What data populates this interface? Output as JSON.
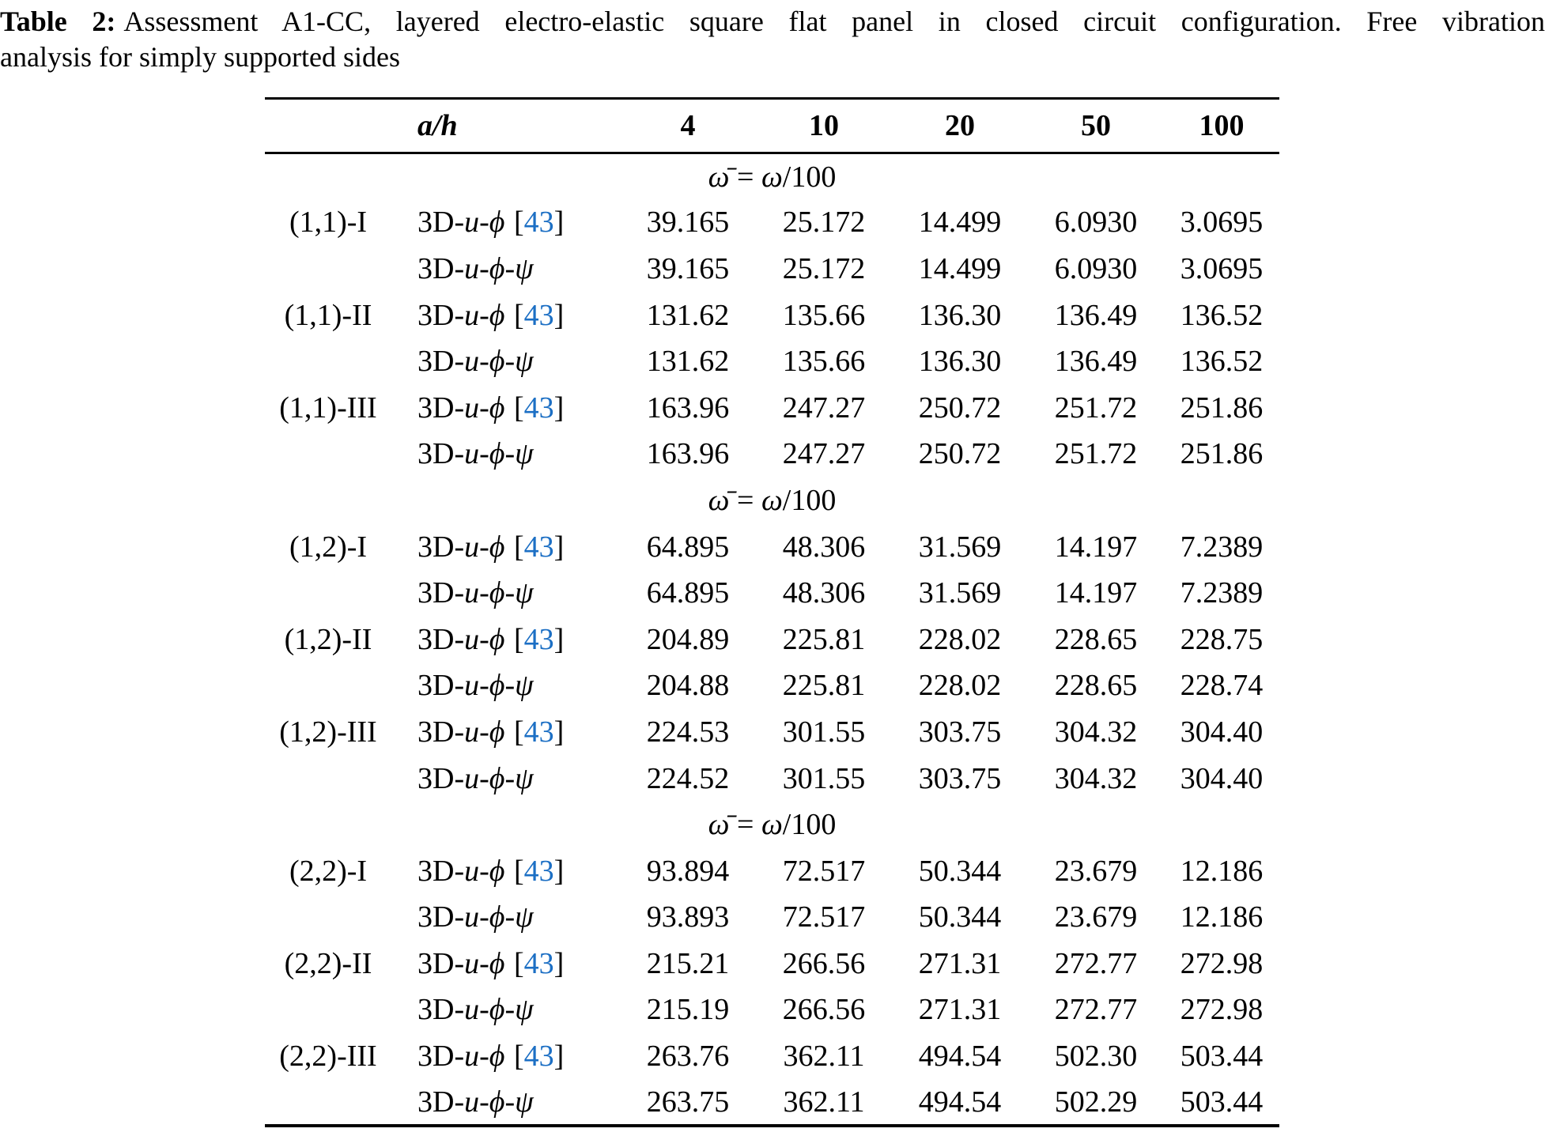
{
  "colors": {
    "background": "#ffffff",
    "text": "#000000",
    "link": "#1c6fc4"
  },
  "caption": {
    "label": "Table 2:",
    "line1_rest": "Assessment A1-CC, layered electro-elastic square flat panel in closed circuit configuration. Free vibration",
    "line2": "analysis for simply supported sides"
  },
  "table": {
    "header": {
      "row_label": "a/h",
      "columns": [
        "4",
        "10",
        "20",
        "50",
        "100"
      ]
    },
    "ref": {
      "open": "[",
      "number": "43",
      "close": "]"
    },
    "methods": {
      "uphi": {
        "parts": [
          {
            "t": "3D-",
            "i": false
          },
          {
            "t": "u",
            "i": true
          },
          {
            "t": "-",
            "i": false
          },
          {
            "t": "ϕ",
            "i": true
          }
        ]
      },
      "uphipsi": {
        "parts": [
          {
            "t": "3D-",
            "i": false
          },
          {
            "t": "u",
            "i": true
          },
          {
            "t": "-",
            "i": false
          },
          {
            "t": "ϕ",
            "i": true
          },
          {
            "t": "-",
            "i": false
          },
          {
            "t": "ψ",
            "i": true
          }
        ]
      }
    },
    "sections": [
      {
        "header_parts": [
          {
            "t": "ω̄",
            "i": true
          },
          {
            "t": " = ",
            "i": false
          },
          {
            "t": "ω",
            "i": true
          },
          {
            "t": "/100",
            "i": false
          }
        ],
        "rows": [
          {
            "mode": "(1,1)-I",
            "method": "uphi",
            "values": [
              "39.165",
              "25.172",
              "14.499",
              "6.0930",
              "3.0695"
            ]
          },
          {
            "mode": "",
            "method": "uphipsi",
            "values": [
              "39.165",
              "25.172",
              "14.499",
              "6.0930",
              "3.0695"
            ]
          },
          {
            "mode": "(1,1)-II",
            "method": "uphi",
            "values": [
              "131.62",
              "135.66",
              "136.30",
              "136.49",
              "136.52"
            ]
          },
          {
            "mode": "",
            "method": "uphipsi",
            "values": [
              "131.62",
              "135.66",
              "136.30",
              "136.49",
              "136.52"
            ]
          },
          {
            "mode": "(1,1)-III",
            "method": "uphi",
            "values": [
              "163.96",
              "247.27",
              "250.72",
              "251.72",
              "251.86"
            ]
          },
          {
            "mode": "",
            "method": "uphipsi",
            "values": [
              "163.96",
              "247.27",
              "250.72",
              "251.72",
              "251.86"
            ]
          }
        ]
      },
      {
        "header_parts": [
          {
            "t": "ω̄",
            "i": true
          },
          {
            "t": " = ",
            "i": false
          },
          {
            "t": "ω",
            "i": true
          },
          {
            "t": "/100",
            "i": false
          }
        ],
        "rows": [
          {
            "mode": "(1,2)-I",
            "method": "uphi",
            "values": [
              "64.895",
              "48.306",
              "31.569",
              "14.197",
              "7.2389"
            ]
          },
          {
            "mode": "",
            "method": "uphipsi",
            "values": [
              "64.895",
              "48.306",
              "31.569",
              "14.197",
              "7.2389"
            ]
          },
          {
            "mode": "(1,2)-II",
            "method": "uphi",
            "values": [
              "204.89",
              "225.81",
              "228.02",
              "228.65",
              "228.75"
            ]
          },
          {
            "mode": "",
            "method": "uphipsi",
            "values": [
              "204.88",
              "225.81",
              "228.02",
              "228.65",
              "228.74"
            ]
          },
          {
            "mode": "(1,2)-III",
            "method": "uphi",
            "values": [
              "224.53",
              "301.55",
              "303.75",
              "304.32",
              "304.40"
            ]
          },
          {
            "mode": "",
            "method": "uphipsi",
            "values": [
              "224.52",
              "301.55",
              "303.75",
              "304.32",
              "304.40"
            ]
          }
        ]
      },
      {
        "header_parts": [
          {
            "t": "ω̄",
            "i": true
          },
          {
            "t": " = ",
            "i": false
          },
          {
            "t": "ω",
            "i": true
          },
          {
            "t": "/100",
            "i": false
          }
        ],
        "rows": [
          {
            "mode": "(2,2)-I",
            "method": "uphi",
            "values": [
              "93.894",
              "72.517",
              "50.344",
              "23.679",
              "12.186"
            ]
          },
          {
            "mode": "",
            "method": "uphipsi",
            "values": [
              "93.893",
              "72.517",
              "50.344",
              "23.679",
              "12.186"
            ]
          },
          {
            "mode": "(2,2)-II",
            "method": "uphi",
            "values": [
              "215.21",
              "266.56",
              "271.31",
              "272.77",
              "272.98"
            ]
          },
          {
            "mode": "",
            "method": "uphipsi",
            "values": [
              "215.19",
              "266.56",
              "271.31",
              "272.77",
              "272.98"
            ]
          },
          {
            "mode": "(2,2)-III",
            "method": "uphi",
            "values": [
              "263.76",
              "362.11",
              "494.54",
              "502.30",
              "503.44"
            ]
          },
          {
            "mode": "",
            "method": "uphipsi",
            "values": [
              "263.75",
              "362.11",
              "494.54",
              "502.29",
              "503.44"
            ]
          }
        ]
      }
    ]
  }
}
